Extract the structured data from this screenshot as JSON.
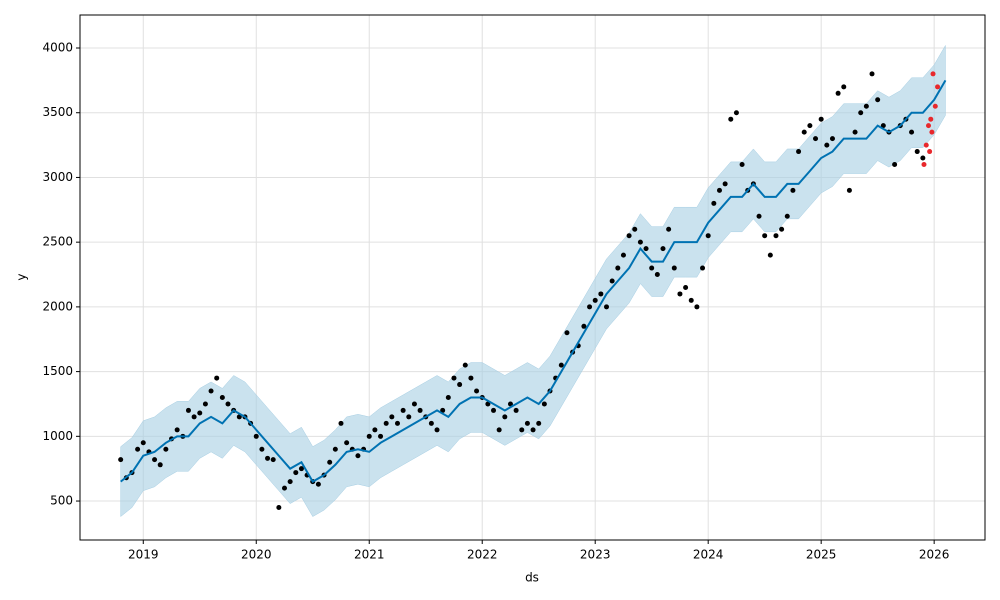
{
  "chart_data": {
    "type": "forecast",
    "xlabel": "ds",
    "ylabel": "y",
    "xlim": [
      2018.44,
      2026.45
    ],
    "ylim": [
      199,
      4255
    ],
    "xticks": [
      2019,
      2020,
      2021,
      2022,
      2023,
      2024,
      2025,
      2026
    ],
    "yticks": [
      500,
      1000,
      1500,
      2000,
      2500,
      3000,
      3500,
      4000
    ],
    "grid": true,
    "forecast": {
      "color": "#0072b2",
      "band_color": "#a6cee3",
      "x": [
        2018.8,
        2018.9,
        2019.0,
        2019.1,
        2019.2,
        2019.3,
        2019.4,
        2019.5,
        2019.6,
        2019.7,
        2019.8,
        2019.9,
        2020.0,
        2020.1,
        2020.2,
        2020.3,
        2020.4,
        2020.5,
        2020.6,
        2020.7,
        2020.8,
        2020.9,
        2021.0,
        2021.1,
        2021.2,
        2021.3,
        2021.4,
        2021.5,
        2021.6,
        2021.7,
        2021.8,
        2021.9,
        2022.0,
        2022.1,
        2022.2,
        2022.3,
        2022.4,
        2022.5,
        2022.6,
        2022.7,
        2022.8,
        2022.9,
        2023.0,
        2023.1,
        2023.2,
        2023.3,
        2023.4,
        2023.5,
        2023.6,
        2023.7,
        2023.8,
        2023.9,
        2024.0,
        2024.1,
        2024.2,
        2024.3,
        2024.4,
        2024.5,
        2024.6,
        2024.7,
        2024.8,
        2024.9,
        2025.0,
        2025.1,
        2025.2,
        2025.3,
        2025.4,
        2025.5,
        2025.6,
        2025.7,
        2025.8,
        2025.9,
        2026.0,
        2026.1
      ],
      "yhat": [
        650,
        720,
        850,
        880,
        950,
        1000,
        1000,
        1100,
        1150,
        1100,
        1200,
        1150,
        1050,
        950,
        850,
        750,
        800,
        650,
        700,
        780,
        880,
        900,
        880,
        950,
        1000,
        1050,
        1100,
        1150,
        1200,
        1150,
        1250,
        1300,
        1300,
        1250,
        1200,
        1250,
        1300,
        1250,
        1350,
        1500,
        1650,
        1800,
        1950,
        2100,
        2200,
        2300,
        2450,
        2350,
        2350,
        2500,
        2500,
        2500,
        2650,
        2750,
        2850,
        2850,
        2950,
        2850,
        2850,
        2950,
        2950,
        3050,
        3150,
        3200,
        3300,
        3300,
        3300,
        3400,
        3350,
        3400,
        3500,
        3500,
        3600,
        3750
      ],
      "lower": [
        380,
        450,
        580,
        610,
        680,
        730,
        730,
        830,
        880,
        830,
        930,
        880,
        780,
        680,
        580,
        480,
        530,
        380,
        430,
        510,
        610,
        630,
        610,
        680,
        730,
        780,
        830,
        880,
        930,
        880,
        980,
        1030,
        1030,
        980,
        930,
        980,
        1030,
        980,
        1080,
        1230,
        1380,
        1530,
        1680,
        1830,
        1930,
        2030,
        2180,
        2080,
        2080,
        2230,
        2230,
        2230,
        2380,
        2480,
        2580,
        2580,
        2680,
        2580,
        2580,
        2680,
        2680,
        2780,
        2880,
        2930,
        3030,
        3030,
        3030,
        3130,
        3080,
        3130,
        3230,
        3230,
        3330,
        3480
      ],
      "upper": [
        920,
        990,
        1120,
        1150,
        1220,
        1270,
        1270,
        1370,
        1420,
        1370,
        1470,
        1420,
        1320,
        1220,
        1120,
        1020,
        1070,
        920,
        970,
        1050,
        1150,
        1170,
        1150,
        1220,
        1270,
        1320,
        1370,
        1420,
        1470,
        1420,
        1520,
        1570,
        1570,
        1520,
        1470,
        1520,
        1570,
        1520,
        1620,
        1770,
        1920,
        2070,
        2220,
        2370,
        2470,
        2570,
        2720,
        2620,
        2620,
        2770,
        2770,
        2770,
        2920,
        3020,
        3120,
        3120,
        3220,
        3120,
        3120,
        3220,
        3220,
        3320,
        3420,
        3470,
        3570,
        3570,
        3570,
        3670,
        3620,
        3670,
        3770,
        3770,
        3870,
        4020
      ]
    },
    "observed": {
      "color": "#000000",
      "x": [
        2018.8,
        2018.85,
        2018.9,
        2018.95,
        2019.0,
        2019.05,
        2019.1,
        2019.15,
        2019.2,
        2019.25,
        2019.3,
        2019.35,
        2019.4,
        2019.45,
        2019.5,
        2019.55,
        2019.6,
        2019.65,
        2019.7,
        2019.75,
        2019.8,
        2019.85,
        2019.9,
        2019.95,
        2020.0,
        2020.05,
        2020.1,
        2020.15,
        2020.2,
        2020.25,
        2020.3,
        2020.35,
        2020.4,
        2020.45,
        2020.5,
        2020.55,
        2020.6,
        2020.65,
        2020.7,
        2020.75,
        2020.8,
        2020.85,
        2020.9,
        2020.95,
        2021.0,
        2021.05,
        2021.1,
        2021.15,
        2021.2,
        2021.25,
        2021.3,
        2021.35,
        2021.4,
        2021.45,
        2021.5,
        2021.55,
        2021.6,
        2021.65,
        2021.7,
        2021.75,
        2021.8,
        2021.85,
        2021.9,
        2021.95,
        2022.0,
        2022.05,
        2022.1,
        2022.15,
        2022.2,
        2022.25,
        2022.3,
        2022.35,
        2022.4,
        2022.45,
        2022.5,
        2022.55,
        2022.6,
        2022.65,
        2022.7,
        2022.75,
        2022.8,
        2022.85,
        2022.9,
        2022.95,
        2023.0,
        2023.05,
        2023.1,
        2023.15,
        2023.2,
        2023.25,
        2023.3,
        2023.35,
        2023.4,
        2023.45,
        2023.5,
        2023.55,
        2023.6,
        2023.65,
        2023.7,
        2023.75,
        2023.8,
        2023.85,
        2023.9,
        2023.95,
        2024.0,
        2024.05,
        2024.1,
        2024.15,
        2024.2,
        2024.25,
        2024.3,
        2024.35,
        2024.4,
        2024.45,
        2024.5,
        2024.55,
        2024.6,
        2024.65,
        2024.7,
        2024.75,
        2024.8,
        2024.85,
        2024.9,
        2024.95,
        2025.0,
        2025.05,
        2025.1,
        2025.15,
        2025.2,
        2025.25,
        2025.3,
        2025.35,
        2025.4,
        2025.45,
        2025.5,
        2025.55,
        2025.6,
        2025.65,
        2025.7,
        2025.75,
        2025.8,
        2025.85,
        2025.9
      ],
      "y": [
        820,
        680,
        720,
        900,
        950,
        880,
        820,
        780,
        900,
        980,
        1050,
        1000,
        1200,
        1150,
        1180,
        1250,
        1350,
        1450,
        1300,
        1250,
        1200,
        1150,
        1150,
        1100,
        1000,
        900,
        830,
        820,
        450,
        600,
        650,
        720,
        750,
        700,
        650,
        630,
        700,
        800,
        900,
        1100,
        950,
        900,
        850,
        900,
        1000,
        1050,
        1000,
        1100,
        1150,
        1100,
        1200,
        1150,
        1250,
        1200,
        1150,
        1100,
        1050,
        1200,
        1300,
        1450,
        1400,
        1550,
        1450,
        1350,
        1300,
        1250,
        1200,
        1050,
        1150,
        1250,
        1200,
        1050,
        1100,
        1050,
        1100,
        1250,
        1350,
        1450,
        1550,
        1800,
        1650,
        1700,
        1850,
        2000,
        2050,
        2100,
        2000,
        2200,
        2300,
        2400,
        2550,
        2600,
        2500,
        2450,
        2300,
        2250,
        2450,
        2600,
        2300,
        2100,
        2150,
        2050,
        2000,
        2300,
        2550,
        2800,
        2900,
        2950,
        3450,
        3500,
        3100,
        2900,
        2950,
        2700,
        2550,
        2400,
        2550,
        2600,
        2700,
        2900,
        3200,
        3350,
        3400,
        3300,
        3450,
        3250,
        3300,
        3650,
        3700,
        2900,
        3350,
        3500,
        3550,
        3800,
        3600,
        3400,
        3350,
        3100,
        3400,
        3450,
        3350,
        3200,
        3150
      ]
    },
    "test": {
      "color": "#e8282c",
      "x": [
        2025.91,
        2025.93,
        2025.95,
        2025.96,
        2025.97,
        2025.98,
        2025.99,
        2026.01,
        2026.03
      ],
      "y": [
        3100,
        3250,
        3400,
        3200,
        3450,
        3350,
        3800,
        3550,
        3700
      ]
    }
  }
}
